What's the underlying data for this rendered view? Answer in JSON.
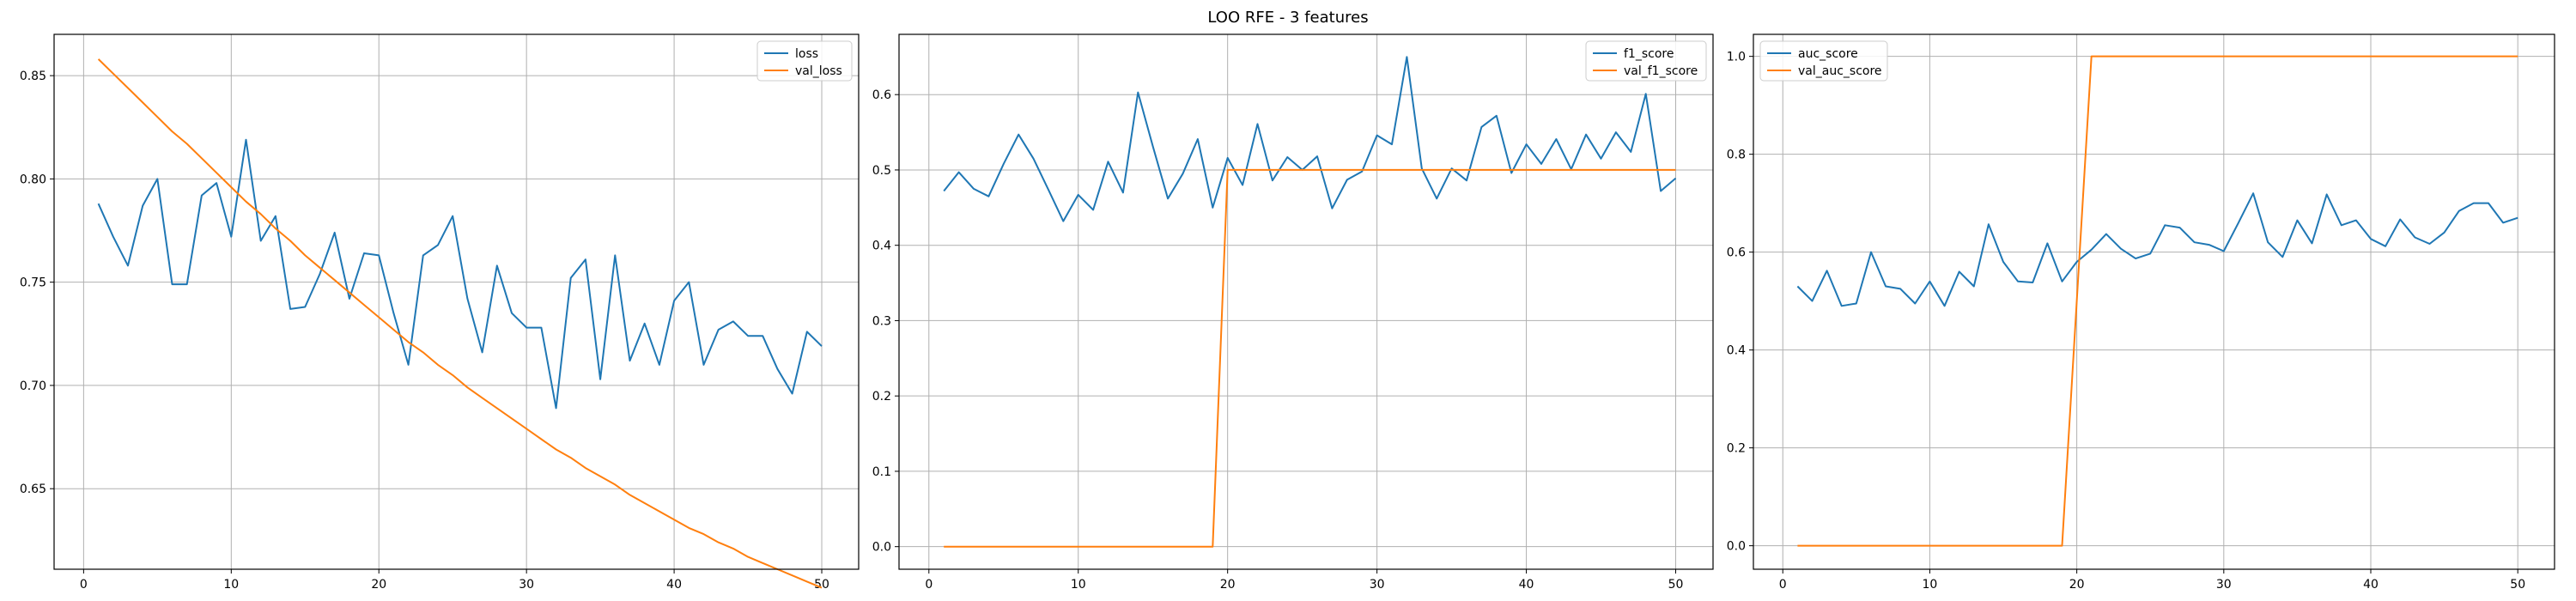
{
  "figure": {
    "title": "LOO RFE - 3 features"
  },
  "colors": {
    "series1": "#1f77b4",
    "series2": "#ff7f0e",
    "grid": "#b0b0b0",
    "axis": "#000000"
  },
  "chart_data": [
    {
      "type": "line",
      "xlim": [
        -2,
        52.5
      ],
      "ylim": [
        0.611,
        0.87
      ],
      "xticks": [
        0,
        10,
        20,
        30,
        40,
        50
      ],
      "yticks": [
        0.65,
        0.7,
        0.75,
        0.8,
        0.85
      ],
      "ytick_labels": [
        "0.65",
        "0.70",
        "0.75",
        "0.80",
        "0.85"
      ],
      "grid": true,
      "legend_position": "top-right",
      "x": [
        1,
        2,
        3,
        4,
        5,
        6,
        7,
        8,
        9,
        10,
        11,
        12,
        13,
        14,
        15,
        16,
        17,
        18,
        19,
        20,
        21,
        22,
        23,
        24,
        25,
        26,
        27,
        28,
        29,
        30,
        31,
        32,
        33,
        34,
        35,
        36,
        37,
        38,
        39,
        40,
        41,
        42,
        43,
        44,
        45,
        46,
        47,
        48,
        49,
        50
      ],
      "series": [
        {
          "name": "loss",
          "color": "#1f77b4",
          "values": [
            0.788,
            0.772,
            0.758,
            0.787,
            0.8,
            0.749,
            0.749,
            0.792,
            0.798,
            0.772,
            0.819,
            0.77,
            0.782,
            0.737,
            0.738,
            0.754,
            0.774,
            0.742,
            0.764,
            0.763,
            0.735,
            0.71,
            0.763,
            0.768,
            0.782,
            0.742,
            0.716,
            0.758,
            0.735,
            0.728,
            0.728,
            0.689,
            0.752,
            0.761,
            0.703,
            0.763,
            0.712,
            0.73,
            0.71,
            0.741,
            0.75,
            0.71,
            0.727,
            0.731,
            0.724,
            0.724,
            0.708,
            0.696,
            0.726,
            0.719
          ]
        },
        {
          "name": "val_loss",
          "color": "#ff7f0e",
          "values": [
            0.858,
            0.851,
            0.844,
            0.837,
            0.83,
            0.823,
            0.817,
            0.81,
            0.803,
            0.796,
            0.789,
            0.783,
            0.776,
            0.77,
            0.763,
            0.757,
            0.751,
            0.745,
            0.739,
            0.733,
            0.727,
            0.721,
            0.716,
            0.71,
            0.705,
            0.699,
            0.694,
            0.689,
            0.684,
            0.679,
            0.674,
            0.669,
            0.665,
            0.66,
            0.656,
            0.652,
            0.647,
            0.643,
            0.639,
            0.635,
            0.631,
            0.628,
            0.624,
            0.621,
            0.617,
            0.614,
            0.611,
            0.608,
            0.605,
            0.602
          ]
        }
      ]
    },
    {
      "type": "line",
      "xlim": [
        -2,
        52.5
      ],
      "ylim": [
        -0.03,
        0.68
      ],
      "xticks": [
        0,
        10,
        20,
        30,
        40,
        50
      ],
      "yticks": [
        0.0,
        0.1,
        0.2,
        0.3,
        0.4,
        0.5,
        0.6
      ],
      "ytick_labels": [
        "0.0",
        "0.1",
        "0.2",
        "0.3",
        "0.4",
        "0.5",
        "0.6"
      ],
      "grid": true,
      "legend_position": "top-right",
      "x": [
        1,
        2,
        3,
        4,
        5,
        6,
        7,
        8,
        9,
        10,
        11,
        12,
        13,
        14,
        15,
        16,
        17,
        18,
        19,
        20,
        21,
        22,
        23,
        24,
        25,
        26,
        27,
        28,
        29,
        30,
        31,
        32,
        33,
        34,
        35,
        36,
        37,
        38,
        39,
        40,
        41,
        42,
        43,
        44,
        45,
        46,
        47,
        48,
        49,
        50
      ],
      "series": [
        {
          "name": "f1_score",
          "color": "#1f77b4",
          "values": [
            0.472,
            0.497,
            0.475,
            0.465,
            0.508,
            0.547,
            0.515,
            0.474,
            0.432,
            0.467,
            0.447,
            0.511,
            0.47,
            0.603,
            0.531,
            0.462,
            0.495,
            0.541,
            0.45,
            0.516,
            0.48,
            0.561,
            0.486,
            0.517,
            0.5,
            0.518,
            0.449,
            0.487,
            0.498,
            0.546,
            0.534,
            0.65,
            0.502,
            0.462,
            0.502,
            0.486,
            0.557,
            0.572,
            0.496,
            0.534,
            0.508,
            0.541,
            0.501,
            0.547,
            0.515,
            0.55,
            0.524,
            0.601,
            0.472,
            0.489
          ]
        },
        {
          "name": "val_f1_score",
          "color": "#ff7f0e",
          "values": [
            0,
            0,
            0,
            0,
            0,
            0,
            0,
            0,
            0,
            0,
            0,
            0,
            0,
            0,
            0,
            0,
            0,
            0,
            0,
            0.5,
            0.5,
            0.5,
            0.5,
            0.5,
            0.5,
            0.5,
            0.5,
            0.5,
            0.5,
            0.5,
            0.5,
            0.5,
            0.5,
            0.5,
            0.5,
            0.5,
            0.5,
            0.5,
            0.5,
            0.5,
            0.5,
            0.5,
            0.5,
            0.5,
            0.5,
            0.5,
            0.5,
            0.5,
            0.5,
            0.5
          ]
        }
      ]
    },
    {
      "type": "line",
      "xlim": [
        -2,
        52.5
      ],
      "ylim": [
        -0.048,
        1.045
      ],
      "xticks": [
        0,
        10,
        20,
        30,
        40,
        50
      ],
      "yticks": [
        0.0,
        0.2,
        0.4,
        0.6,
        0.8,
        1.0
      ],
      "ytick_labels": [
        "0.0",
        "0.2",
        "0.4",
        "0.6",
        "0.8",
        "1.0"
      ],
      "grid": true,
      "legend_position": "top-left",
      "x": [
        1,
        2,
        3,
        4,
        5,
        6,
        7,
        8,
        9,
        10,
        11,
        12,
        13,
        14,
        15,
        16,
        17,
        18,
        19,
        20,
        21,
        22,
        23,
        24,
        25,
        26,
        27,
        28,
        29,
        30,
        31,
        32,
        33,
        34,
        35,
        36,
        37,
        38,
        39,
        40,
        41,
        42,
        43,
        44,
        45,
        46,
        47,
        48,
        49,
        50
      ],
      "series": [
        {
          "name": "auc_score",
          "color": "#1f77b4",
          "values": [
            0.53,
            0.5,
            0.562,
            0.49,
            0.495,
            0.6,
            0.53,
            0.525,
            0.495,
            0.54,
            0.49,
            0.56,
            0.53,
            0.657,
            0.58,
            0.54,
            0.538,
            0.618,
            0.54,
            0.58,
            0.605,
            0.637,
            0.607,
            0.587,
            0.597,
            0.655,
            0.65,
            0.62,
            0.615,
            0.602,
            0.66,
            0.72,
            0.62,
            0.59,
            0.665,
            0.618,
            0.718,
            0.655,
            0.665,
            0.627,
            0.612,
            0.667,
            0.63,
            0.617,
            0.64,
            0.684,
            0.7,
            0.7,
            0.66,
            0.67
          ]
        },
        {
          "name": "val_auc_score",
          "color": "#ff7f0e",
          "values": [
            0,
            0,
            0,
            0,
            0,
            0,
            0,
            0,
            0,
            0,
            0,
            0,
            0,
            0,
            0,
            0,
            0,
            0,
            0,
            0.5,
            1,
            1,
            1,
            1,
            1,
            1,
            1,
            1,
            1,
            1,
            1,
            1,
            1,
            1,
            1,
            1,
            1,
            1,
            1,
            1,
            1,
            1,
            1,
            1,
            1,
            1,
            1,
            1,
            1,
            1
          ]
        }
      ]
    }
  ]
}
